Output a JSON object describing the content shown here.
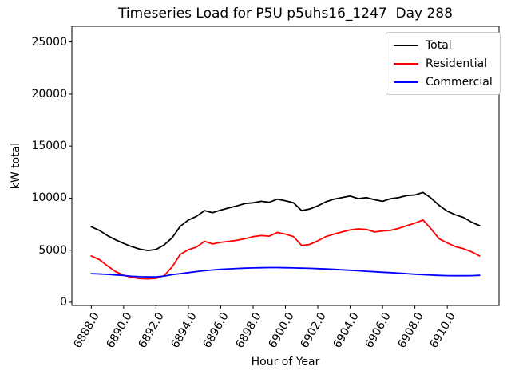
{
  "figure": {
    "title": "Timeseries Load for P5U p5uhs16_1247  Day 288"
  },
  "chart_data": {
    "type": "line",
    "title": "Timeseries Load for P5U p5uhs16_1247  Day 288",
    "xlabel": "Hour of Year",
    "ylabel": "kW total",
    "grid": false,
    "legend_position": "upper right",
    "xlim": [
      6886.8,
      6913.2
    ],
    "ylim": [
      -306,
      26500
    ],
    "xticks": [
      6888,
      6890,
      6892,
      6894,
      6896,
      6898,
      6900,
      6902,
      6904,
      6906,
      6908,
      6910
    ],
    "xtick_labels": [
      "6888.0",
      "6890.0",
      "6892.0",
      "6894.0",
      "6896.0",
      "6898.0",
      "6900.0",
      "6902.0",
      "6904.0",
      "6906.0",
      "6908.0",
      "6910.0"
    ],
    "yticks": [
      0,
      5000,
      10000,
      15000,
      20000,
      25000
    ],
    "ytick_labels": [
      "0",
      "5000",
      "10000",
      "15000",
      "20000",
      "25000"
    ],
    "x": [
      6888.0,
      6888.5,
      6889.0,
      6889.5,
      6890.0,
      6890.5,
      6891.0,
      6891.5,
      6892.0,
      6892.5,
      6893.0,
      6893.5,
      6894.0,
      6894.5,
      6895.0,
      6895.5,
      6896.0,
      6896.5,
      6897.0,
      6897.5,
      6898.0,
      6898.5,
      6899.0,
      6899.5,
      6900.0,
      6900.5,
      6901.0,
      6901.5,
      6902.0,
      6902.5,
      6903.0,
      6903.5,
      6904.0,
      6904.5,
      6905.0,
      6905.5,
      6906.0,
      6906.5,
      6907.0,
      6907.5,
      6908.0,
      6908.5,
      6909.0,
      6909.5,
      6910.0,
      6910.5,
      6911.0,
      6911.5,
      6912.0
    ],
    "series": [
      {
        "name": "Total",
        "color": "#000000",
        "values": [
          7250,
          6900,
          6400,
          6000,
          5650,
          5350,
          5100,
          4970,
          5070,
          5500,
          6200,
          7300,
          7900,
          8250,
          8800,
          8600,
          8850,
          9050,
          9250,
          9480,
          9550,
          9700,
          9600,
          9900,
          9750,
          9550,
          8800,
          8950,
          9250,
          9650,
          9900,
          10050,
          10200,
          9950,
          10050,
          9850,
          9700,
          9950,
          10050,
          10250,
          10300,
          10550,
          10000,
          9300,
          8750,
          8400,
          8150,
          7700,
          7350
        ]
      },
      {
        "name": "Residential",
        "color": "#ff0000",
        "values": [
          4450,
          4100,
          3500,
          2950,
          2600,
          2400,
          2280,
          2250,
          2300,
          2550,
          3400,
          4600,
          5050,
          5300,
          5850,
          5600,
          5750,
          5850,
          5950,
          6100,
          6300,
          6400,
          6350,
          6700,
          6550,
          6300,
          5450,
          5550,
          5900,
          6300,
          6550,
          6750,
          6950,
          7050,
          7000,
          6750,
          6850,
          6900,
          7100,
          7350,
          7600,
          7900,
          7050,
          6100,
          5700,
          5350,
          5150,
          4850,
          4450
        ]
      },
      {
        "name": "Commercial",
        "color": "#0000ff",
        "values": [
          2750,
          2720,
          2680,
          2630,
          2570,
          2500,
          2460,
          2440,
          2440,
          2520,
          2650,
          2750,
          2850,
          2950,
          3030,
          3100,
          3160,
          3210,
          3250,
          3280,
          3300,
          3320,
          3330,
          3330,
          3320,
          3300,
          3280,
          3260,
          3230,
          3200,
          3160,
          3120,
          3080,
          3030,
          2980,
          2930,
          2890,
          2850,
          2800,
          2750,
          2700,
          2650,
          2610,
          2580,
          2560,
          2550,
          2550,
          2560,
          2590
        ]
      }
    ]
  }
}
